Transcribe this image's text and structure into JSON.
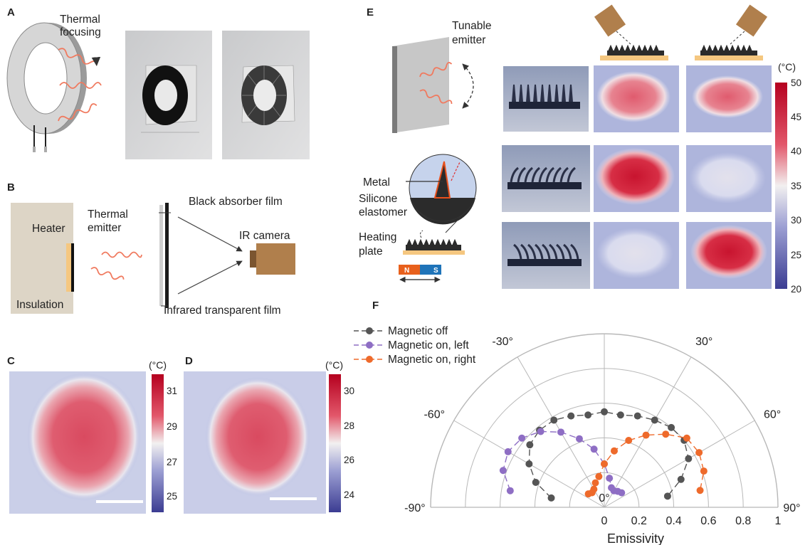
{
  "panels": {
    "A": {
      "letter": "A",
      "label": "Thermal\nfocusing"
    },
    "B": {
      "letter": "B",
      "labels": [
        "Heater",
        "Thermal\nemitter",
        "Black absorber film",
        "IR camera",
        "Insulation",
        "Infrared transparent film"
      ]
    },
    "C": {
      "letter": "C",
      "unit": "(°C)",
      "ticks": [
        "31",
        "29",
        "27",
        "25"
      ]
    },
    "D": {
      "letter": "D",
      "unit": "(°C)",
      "ticks": [
        "30",
        "28",
        "26",
        "24"
      ]
    },
    "E": {
      "letter": "E",
      "labels": [
        "Tunable\nemitter",
        "Metal",
        "Silicone\nelastomer",
        "Heating\nplate"
      ],
      "magnet": {
        "north": "N",
        "south": "S"
      },
      "unit": "(°C)",
      "ticks": [
        "50",
        "45",
        "40",
        "35",
        "30",
        "25",
        "20"
      ]
    },
    "F": {
      "letter": "F"
    }
  },
  "colors": {
    "wave": "#f07a5f",
    "camera": "#b07f4c",
    "heater": "#f5c780",
    "insulation": "#ddd5c6",
    "magnet_n": "#e8601c",
    "magnet_s": "#1f74b9",
    "hot": "#c0132e",
    "cold": "#3c3f91",
    "series_off": "#555555",
    "series_left": "#8e6ec4",
    "series_right": "#ee6a2b"
  },
  "chart_data": {
    "type": "polar-scatter",
    "xlabel": "Emissivity",
    "radial_ticks": [
      "0",
      "0.2",
      "0.4",
      "0.6",
      "0.8",
      "1"
    ],
    "radial_range": [
      0,
      1
    ],
    "angle_range": [
      -90,
      90
    ],
    "angle_labels": [
      "0°",
      "30°",
      "-30°",
      "60°",
      "-60°",
      "90°",
      "-90°"
    ],
    "grid": true,
    "legend_position": "top-left",
    "series": [
      {
        "name": "Magnetic off",
        "angles": [
          -80,
          -70,
          -60,
          -50,
          -40,
          -30,
          -20,
          -10,
          0,
          10,
          20,
          30,
          40,
          50,
          60,
          70,
          80
        ],
        "values": [
          0.31,
          0.42,
          0.5,
          0.56,
          0.58,
          0.58,
          0.56,
          0.54,
          0.55,
          0.54,
          0.56,
          0.58,
          0.6,
          0.6,
          0.56,
          0.47,
          0.37
        ],
        "color": "#555555"
      },
      {
        "name": "Magnetic on, left",
        "angles": [
          -80,
          -70,
          -60,
          -50,
          -40,
          -30,
          -20,
          -10,
          0,
          10,
          20,
          30,
          40,
          50
        ],
        "values": [
          0.55,
          0.62,
          0.64,
          0.62,
          0.57,
          0.5,
          0.42,
          0.34,
          0.25,
          0.17,
          0.12,
          0.11,
          0.12,
          0.13
        ],
        "color": "#8e6ec4"
      },
      {
        "name": "Magnetic on, right",
        "angles": [
          -50,
          -40,
          -30,
          -20,
          -10,
          0,
          10,
          20,
          30,
          40,
          50,
          60,
          70,
          80
        ],
        "values": [
          0.12,
          0.11,
          0.12,
          0.15,
          0.18,
          0.25,
          0.33,
          0.41,
          0.48,
          0.55,
          0.62,
          0.63,
          0.61,
          0.56
        ],
        "color": "#ee6a2b"
      }
    ]
  }
}
